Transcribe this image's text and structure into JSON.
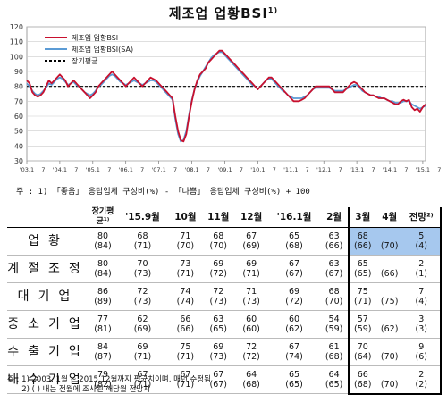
{
  "title": "제조업 업황BSI",
  "title_sup": "1)",
  "note_top": "주 : 1) 「좋음」 응답업체 구성비(%) - 「나쁨」 응답업체 구성비(%) + 100",
  "chart_data": {
    "type": "line",
    "ylim": [
      30,
      120
    ],
    "yticks": [
      "30",
      "40",
      "50",
      "60",
      "70",
      "80",
      "90",
      "100",
      "110",
      "120"
    ],
    "xticks": [
      "'03.1",
      "'04.1",
      "'05.1",
      "'06.1",
      "'07.1",
      "'08.1",
      "'09.1",
      "'10.1",
      "'11.1",
      "'12.1",
      "'13.1",
      "'14.1",
      "'15.1",
      "'16.1"
    ],
    "x_start_year": 2003,
    "legend": [
      "제조업 업황BSI",
      "제조업 업황BSI(SA)",
      "장기평균"
    ],
    "long_term_avg": 80,
    "series": [
      {
        "name": "제조업 업황BSI",
        "color": "#c8102e",
        "values": [
          84,
          82,
          76,
          74,
          73,
          74,
          76,
          80,
          84,
          82,
          84,
          86,
          88,
          86,
          84,
          80,
          82,
          84,
          82,
          80,
          78,
          76,
          74,
          72,
          74,
          76,
          80,
          82,
          84,
          86,
          88,
          90,
          88,
          86,
          84,
          82,
          80,
          82,
          84,
          86,
          84,
          82,
          80,
          82,
          84,
          86,
          85,
          84,
          82,
          80,
          78,
          76,
          74,
          72,
          60,
          50,
          44,
          43,
          48,
          60,
          70,
          78,
          84,
          88,
          90,
          92,
          96,
          98,
          100,
          102,
          104,
          104,
          102,
          100,
          98,
          96,
          94,
          92,
          90,
          88,
          86,
          84,
          82,
          80,
          78,
          80,
          82,
          84,
          86,
          86,
          84,
          82,
          80,
          78,
          76,
          74,
          72,
          70,
          70,
          70,
          71,
          72,
          74,
          76,
          78,
          80,
          80,
          80,
          80,
          80,
          80,
          78,
          76,
          76,
          76,
          76,
          78,
          80,
          82,
          83,
          82,
          80,
          78,
          76,
          75,
          74,
          74,
          73,
          72,
          72,
          72,
          71,
          70,
          69,
          68,
          68,
          70,
          71,
          70,
          71,
          66,
          64,
          65,
          63,
          66,
          68
        ]
      },
      {
        "name": "제조업 업황BSI(SA)",
        "color": "#5b9bd5",
        "values": [
          82,
          80,
          77,
          75,
          74,
          75,
          77,
          79,
          82,
          81,
          83,
          85,
          86,
          85,
          83,
          81,
          82,
          83,
          81,
          80,
          78,
          76,
          75,
          74,
          75,
          77,
          80,
          81,
          83,
          85,
          87,
          88,
          87,
          85,
          83,
          82,
          81,
          82,
          83,
          84,
          83,
          82,
          81,
          82,
          83,
          84,
          84,
          83,
          81,
          79,
          77,
          75,
          73,
          71,
          58,
          48,
          43,
          44,
          50,
          61,
          71,
          78,
          83,
          87,
          90,
          93,
          96,
          99,
          101,
          102,
          103,
          103,
          101,
          99,
          97,
          95,
          93,
          91,
          89,
          87,
          85,
          83,
          81,
          80,
          78,
          80,
          82,
          84,
          85,
          85,
          83,
          81,
          79,
          77,
          76,
          74,
          73,
          72,
          72,
          72,
          72,
          73,
          74,
          76,
          78,
          79,
          79,
          79,
          79,
          79,
          79,
          78,
          77,
          77,
          77,
          77,
          78,
          79,
          80,
          81,
          81,
          79,
          77,
          76,
          75,
          74,
          74,
          73,
          73,
          72,
          72,
          71,
          70,
          70,
          69,
          69,
          69,
          70,
          70,
          70,
          68,
          67,
          66,
          65,
          66,
          67
        ]
      }
    ]
  },
  "table": {
    "header_blank": "",
    "columns": [
      "'15.9월",
      "10월",
      "11월",
      "12월",
      "'16.1월",
      "2월",
      "3월",
      "4월",
      "전망²⁾"
    ],
    "header_extra": "장기평균¹⁾",
    "rows": [
      {
        "label": "업황",
        "avg": "80",
        "avg_p": "(84)",
        "cells": [
          [
            "68",
            "(71)"
          ],
          [
            "71",
            "(70)"
          ],
          [
            "68",
            "(70)"
          ],
          [
            "67",
            "(69)"
          ],
          [
            "65",
            "(68)"
          ],
          [
            "63",
            "(66)"
          ],
          [
            "68",
            "(66)"
          ],
          [
            "",
            "(70)"
          ],
          [
            "5",
            "(4)"
          ]
        ]
      },
      {
        "label": "계절조정",
        "avg": "80",
        "avg_p": "(84)",
        "cells": [
          [
            "70",
            "(73)"
          ],
          [
            "73",
            "(71)"
          ],
          [
            "69",
            "(72)"
          ],
          [
            "69",
            "(71)"
          ],
          [
            "67",
            "(67)"
          ],
          [
            "63",
            "(67)"
          ],
          [
            "65",
            "(65)"
          ],
          [
            "",
            "(66)"
          ],
          [
            "2",
            "(1)"
          ]
        ]
      },
      {
        "label": "대기업",
        "avg": "86",
        "avg_p": "(89)",
        "cells": [
          [
            "72",
            "(73)"
          ],
          [
            "74",
            "(74)"
          ],
          [
            "72",
            "(73)"
          ],
          [
            "71",
            "(73)"
          ],
          [
            "69",
            "(72)"
          ],
          [
            "68",
            "(70)"
          ],
          [
            "75",
            "(71)"
          ],
          [
            "",
            "(75)"
          ],
          [
            "7",
            "(4)"
          ]
        ]
      },
      {
        "label": "중소기업",
        "avg": "77",
        "avg_p": "(81)",
        "cells": [
          [
            "62",
            "(69)"
          ],
          [
            "66",
            "(66)"
          ],
          [
            "63",
            "(65)"
          ],
          [
            "60",
            "(60)"
          ],
          [
            "60",
            "(62)"
          ],
          [
            "54",
            "(59)"
          ],
          [
            "57",
            "(59)"
          ],
          [
            "",
            "(62)"
          ],
          [
            "3",
            "(3)"
          ]
        ]
      },
      {
        "label": "수출기업",
        "avg": "84",
        "avg_p": "(87)",
        "cells": [
          [
            "69",
            "(71)"
          ],
          [
            "75",
            "(71)"
          ],
          [
            "69",
            "(73)"
          ],
          [
            "72",
            "(72)"
          ],
          [
            "67",
            "(74)"
          ],
          [
            "61",
            "(68)"
          ],
          [
            "70",
            "(64)"
          ],
          [
            "",
            "(70)"
          ],
          [
            "9",
            "(6)"
          ]
        ]
      },
      {
        "label": "내수기업",
        "avg": "79",
        "avg_p": "(82)",
        "cells": [
          [
            "67",
            "(71)"
          ],
          [
            "67",
            "(71)"
          ],
          [
            "67",
            "(67)"
          ],
          [
            "64",
            "(68)"
          ],
          [
            "65",
            "(65)"
          ],
          [
            "64",
            "(65)"
          ],
          [
            "66",
            "(68)"
          ],
          [
            "",
            "(70)"
          ],
          [
            "2",
            "(2)"
          ]
        ]
      }
    ]
  },
  "notes_bottom": "주 : 1) 2003. 1월 ~ 2015.12월까지 평균치이며, 매년 수정됨\n      2) ( ) 내는 전월에 조사된 해당월 전망치"
}
